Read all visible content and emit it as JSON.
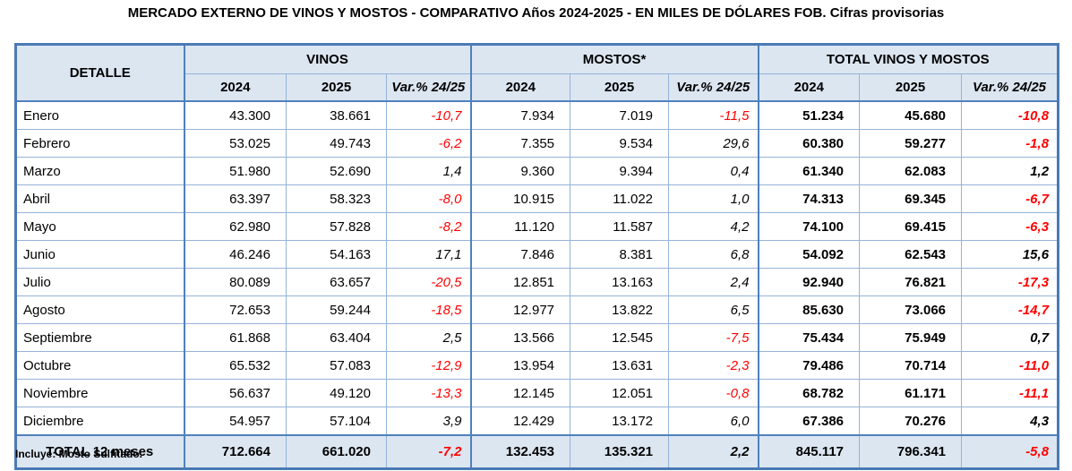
{
  "title": "MERCADO EXTERNO DE VINOS Y MOSTOS - COMPARATIVO Años 2024-2025 - EN MILES DE DÓLARES FOB. Cifras provisorias",
  "footnote": "Incluye: Mosto Sulfitado.",
  "colors": {
    "header_fill": "#dce6f1",
    "grid_line": "#95b3d7",
    "group_border": "#4f81bd",
    "outer_border": "#4a7ab5",
    "negative_value": "#fe0000"
  },
  "table": {
    "detalle_header": "DETALLE",
    "groups": [
      {
        "label": "VINOS"
      },
      {
        "label": "MOSTOS*"
      },
      {
        "label": "TOTAL VINOS Y MOSTOS"
      }
    ],
    "col_headers": {
      "y2024": "2024",
      "y2025": "2025",
      "var": "Var.% 24/25"
    },
    "rows": [
      {
        "month": "Enero",
        "vinos": [
          "43.300",
          "38.661",
          "-10,7"
        ],
        "mostos": [
          "7.934",
          "7.019",
          "-11,5"
        ],
        "total": [
          "51.234",
          "45.680",
          "-10,8"
        ]
      },
      {
        "month": "Febrero",
        "vinos": [
          "53.025",
          "49.743",
          "-6,2"
        ],
        "mostos": [
          "7.355",
          "9.534",
          "29,6"
        ],
        "total": [
          "60.380",
          "59.277",
          "-1,8"
        ]
      },
      {
        "month": "Marzo",
        "vinos": [
          "51.980",
          "52.690",
          "1,4"
        ],
        "mostos": [
          "9.360",
          "9.394",
          "0,4"
        ],
        "total": [
          "61.340",
          "62.083",
          "1,2"
        ]
      },
      {
        "month": "Abril",
        "vinos": [
          "63.397",
          "58.323",
          "-8,0"
        ],
        "mostos": [
          "10.915",
          "11.022",
          "1,0"
        ],
        "total": [
          "74.313",
          "69.345",
          "-6,7"
        ]
      },
      {
        "month": "Mayo",
        "vinos": [
          "62.980",
          "57.828",
          "-8,2"
        ],
        "mostos": [
          "11.120",
          "11.587",
          "4,2"
        ],
        "total": [
          "74.100",
          "69.415",
          "-6,3"
        ]
      },
      {
        "month": "Junio",
        "vinos": [
          "46.246",
          "54.163",
          "17,1"
        ],
        "mostos": [
          "7.846",
          "8.381",
          "6,8"
        ],
        "total": [
          "54.092",
          "62.543",
          "15,6"
        ]
      },
      {
        "month": "Julio",
        "vinos": [
          "80.089",
          "63.657",
          "-20,5"
        ],
        "mostos": [
          "12.851",
          "13.163",
          "2,4"
        ],
        "total": [
          "92.940",
          "76.821",
          "-17,3"
        ]
      },
      {
        "month": "Agosto",
        "vinos": [
          "72.653",
          "59.244",
          "-18,5"
        ],
        "mostos": [
          "12.977",
          "13.822",
          "6,5"
        ],
        "total": [
          "85.630",
          "73.066",
          "-14,7"
        ]
      },
      {
        "month": "Septiembre",
        "vinos": [
          "61.868",
          "63.404",
          "2,5"
        ],
        "mostos": [
          "13.566",
          "12.545",
          "-7,5"
        ],
        "total": [
          "75.434",
          "75.949",
          "0,7"
        ]
      },
      {
        "month": "Octubre",
        "vinos": [
          "65.532",
          "57.083",
          "-12,9"
        ],
        "mostos": [
          "13.954",
          "13.631",
          "-2,3"
        ],
        "total": [
          "79.486",
          "70.714",
          "-11,0"
        ]
      },
      {
        "month": "Noviembre",
        "vinos": [
          "56.637",
          "49.120",
          "-13,3"
        ],
        "mostos": [
          "12.145",
          "12.051",
          "-0,8"
        ],
        "total": [
          "68.782",
          "61.171",
          "-11,1"
        ]
      },
      {
        "month": "Diciembre",
        "vinos": [
          "54.957",
          "57.104",
          "3,9"
        ],
        "mostos": [
          "12.429",
          "13.172",
          "6,0"
        ],
        "total": [
          "67.386",
          "70.276",
          "4,3"
        ]
      }
    ],
    "total_row": {
      "label": "TOTAL 12 meses",
      "vinos": [
        "712.664",
        "661.020",
        "-7,2"
      ],
      "mostos": [
        "132.453",
        "135.321",
        "2,2"
      ],
      "total": [
        "845.117",
        "796.341",
        "-5,8"
      ]
    }
  }
}
